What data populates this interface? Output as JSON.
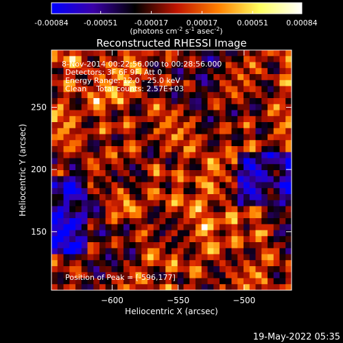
{
  "colorbar": {
    "tick_labels": [
      "-0.00084",
      "-0.00051",
      "-0.00017",
      "0.00017",
      "0.00051",
      "0.00084"
    ],
    "tick_values": [
      -0.00084,
      -0.00051,
      -0.00017,
      0.00017,
      0.00051,
      0.00084
    ],
    "range": [
      -0.00084,
      0.00084
    ],
    "units_parts": [
      "(photons cm",
      "-2",
      " s",
      "-1",
      " asec",
      "-2",
      ")"
    ],
    "colors": [
      "#0000ff",
      "#3a00a8",
      "#000000",
      "#c01400",
      "#ff8000",
      "#ffff60",
      "#ffffff"
    ]
  },
  "chart_data": {
    "type": "heatmap",
    "title": "Reconstructed RHESSI Image",
    "xlabel": "Heliocentric X (arcsec)",
    "ylabel": "Heliocentric Y (arcsec)",
    "xlim": [
      -646,
      -464
    ],
    "ylim": [
      103,
      296
    ],
    "xticks": [
      -600,
      -550,
      -500
    ],
    "yticks": [
      150,
      200,
      250
    ],
    "peak_location": [
      -596,
      177
    ],
    "annotations": [
      "8-Nov-2014 00:22:56.000 to 00:28:56.000",
      "Detectors: 3F 6F 9F, Att 0",
      "Energy Range: 12.0 - 25.0 keV",
      "Clean    Total counts: 2.57E+03",
      "Position of Peak = [-596,177]"
    ],
    "colormap": "rhessi-diverging (blue-purple-black-red-orange-yellow-white)"
  },
  "footer": {
    "timestamp": "19-May-2022 05:35"
  }
}
